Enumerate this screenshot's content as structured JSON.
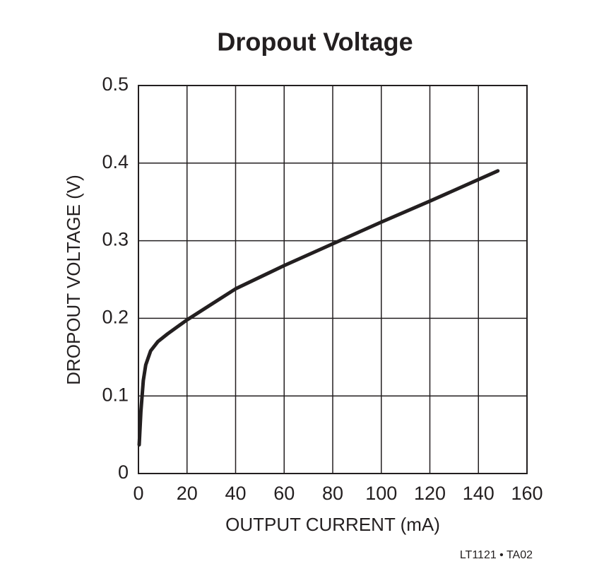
{
  "chart_data": {
    "type": "line",
    "title": "Dropout Voltage",
    "xlabel": "OUTPUT CURRENT (mA)",
    "ylabel": "DROPOUT VOLTAGE (V)",
    "note": "LT1121 • TA02",
    "x": [
      0.3,
      1,
      2,
      3,
      5,
      8,
      12,
      20,
      30,
      40,
      60,
      80,
      100,
      120,
      148
    ],
    "series": [
      {
        "name": "Dropout voltage",
        "color": "#231f20",
        "values": [
          0.037,
          0.08,
          0.12,
          0.14,
          0.158,
          0.17,
          0.18,
          0.198,
          0.218,
          0.238,
          0.268,
          0.296,
          0.324,
          0.351,
          0.39
        ]
      }
    ],
    "xlim": [
      0,
      160
    ],
    "xticks": [
      0,
      20,
      40,
      60,
      80,
      100,
      120,
      140,
      160
    ],
    "ylim": [
      0,
      0.5
    ],
    "yticks": [
      0,
      0.1,
      0.2,
      0.3,
      0.4,
      0.5
    ],
    "grid": true
  }
}
